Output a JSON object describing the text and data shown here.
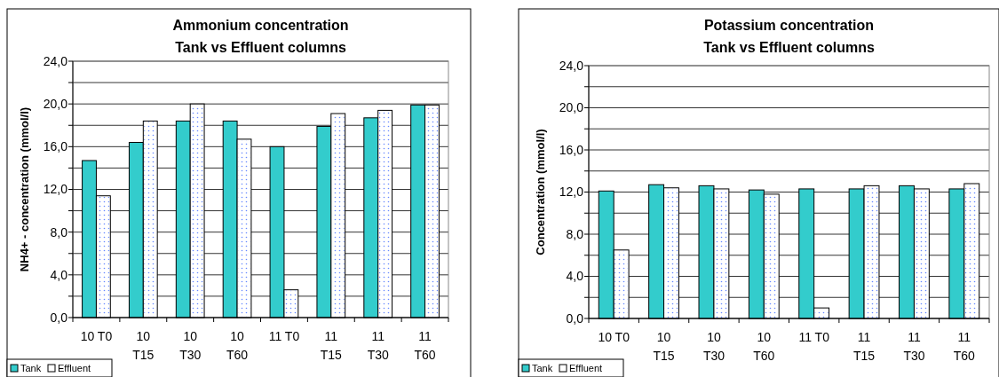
{
  "chart_data": [
    {
      "type": "bar",
      "title": "Ammonium concentration\nTank vs Effluent columns",
      "ylabel": "NH4+ - concentration (mmol/l)",
      "categories": [
        "10 T0",
        "10 T15",
        "10 T30",
        "10 T60",
        "11 T0",
        "11 T15",
        "11 T30",
        "11 T60"
      ],
      "series": [
        {
          "name": "Tank",
          "color": "#33cccc",
          "values": [
            14.7,
            16.4,
            18.4,
            18.4,
            16.0,
            17.9,
            18.7,
            19.9
          ]
        },
        {
          "name": "Effluent",
          "color": "#ffffff",
          "values": [
            11.4,
            18.4,
            20.0,
            16.7,
            2.6,
            19.1,
            19.4,
            19.9
          ]
        }
      ],
      "ylim": [
        0,
        24
      ],
      "yticks": [
        {
          "value": 0,
          "label": "0,0"
        },
        {
          "value": 2,
          "label": null
        },
        {
          "value": 4,
          "label": "4,0"
        },
        {
          "value": 6,
          "label": null
        },
        {
          "value": 8,
          "label": "8,0"
        },
        {
          "value": 10,
          "label": null
        },
        {
          "value": 12,
          "label": "12,0"
        },
        {
          "value": 14,
          "label": null
        },
        {
          "value": 16,
          "label": "16,0"
        },
        {
          "value": 18,
          "label": null
        },
        {
          "value": 20,
          "label": "20,0"
        },
        {
          "value": 22,
          "label": null
        },
        {
          "value": 24,
          "label": "24,0"
        }
      ],
      "grid": "y",
      "legend": "bottom left"
    },
    {
      "type": "bar",
      "title": "Potassium concentration\nTank vs Effluent columns",
      "ylabel": "Concentration (mmol/l)",
      "categories": [
        "10 T0",
        "10 T15",
        "10 T30",
        "10 T60",
        "11 T0",
        "11 T15",
        "11 T30",
        "11 T60"
      ],
      "series": [
        {
          "name": "Tank",
          "color": "#33cccc",
          "values": [
            12.1,
            12.7,
            12.6,
            12.2,
            12.3,
            12.3,
            12.6,
            12.3
          ]
        },
        {
          "name": "Effluent",
          "color": "#ffffff",
          "values": [
            6.5,
            12.4,
            12.3,
            11.8,
            1.0,
            12.6,
            12.3,
            12.8
          ]
        }
      ],
      "ylim": [
        0,
        24
      ],
      "yticks": [
        {
          "value": 0,
          "label": "0,0"
        },
        {
          "value": 2,
          "label": null
        },
        {
          "value": 4,
          "label": "4,0"
        },
        {
          "value": 6,
          "label": null
        },
        {
          "value": 8,
          "label": "8,0"
        },
        {
          "value": 10,
          "label": null
        },
        {
          "value": 12,
          "label": "12,0"
        },
        {
          "value": 14,
          "label": null
        },
        {
          "value": 16,
          "label": "16,0"
        },
        {
          "value": 18,
          "label": null
        },
        {
          "value": 20,
          "label": "20,0"
        },
        {
          "value": 22,
          "label": null
        },
        {
          "value": 24,
          "label": "24,0"
        }
      ],
      "grid": "y",
      "legend": "bottom left"
    }
  ]
}
